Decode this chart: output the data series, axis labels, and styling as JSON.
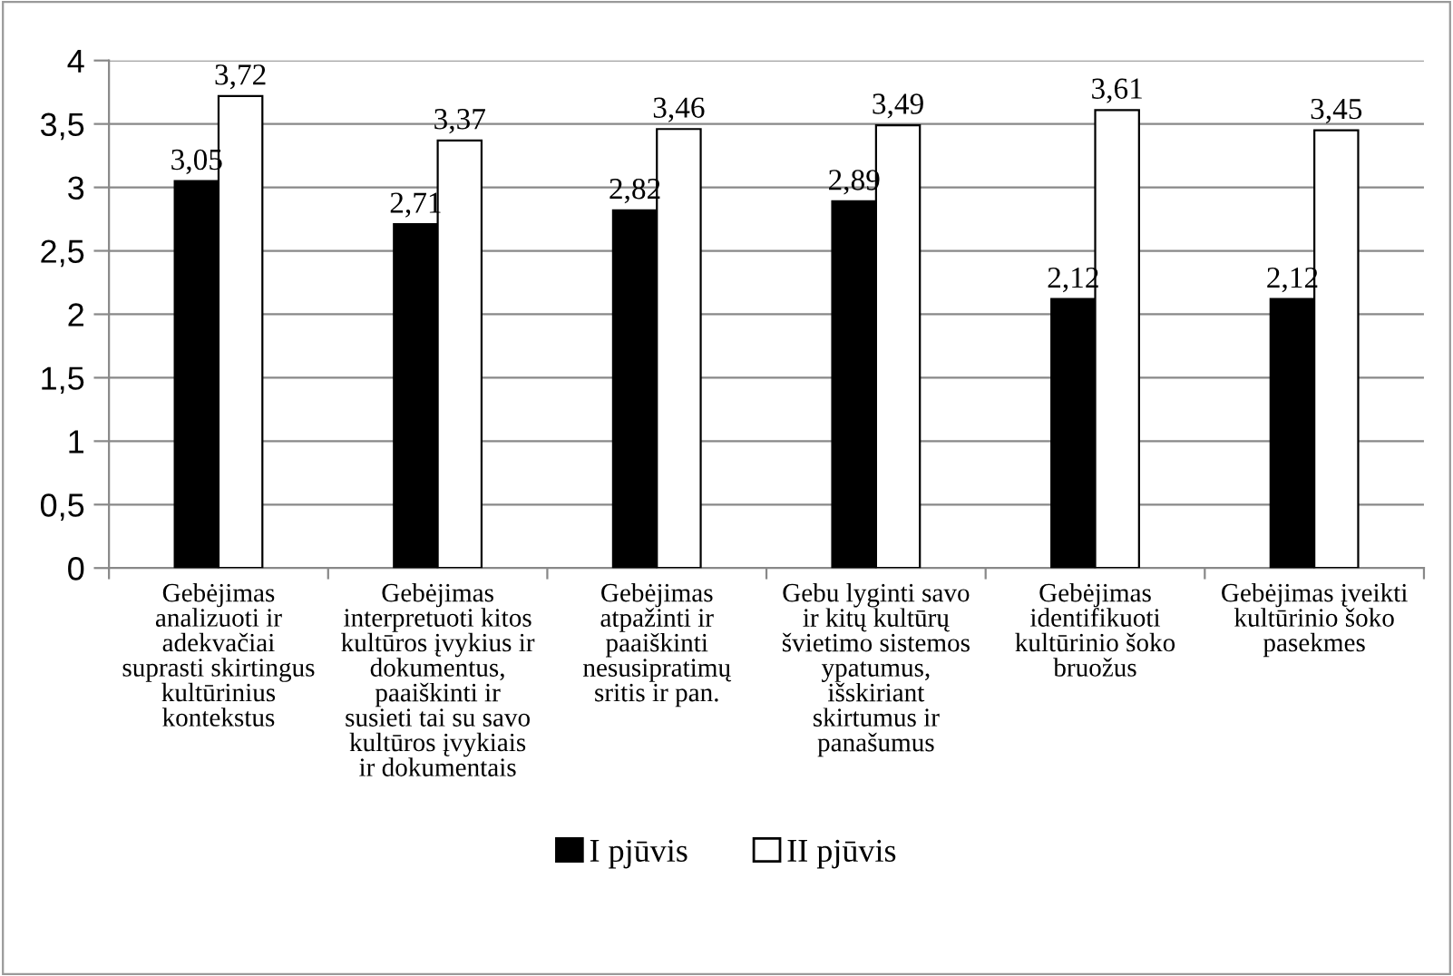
{
  "chart_data": {
    "type": "bar",
    "categories": [
      "Gebėjimas\nanalizuoti ir\nadekvačiai\nsuprasti skirtingus\nkultūrinius\nkontekstus",
      "Gebėjimas\ninterpretuoti kitos\nkultūros įvykius ir\ndokumentus,\npaaiškinti ir\nsusieti tai su savo\nkultūros įvykiais\nir dokumentais",
      "Gebėjimas\natpažinti ir\npaaiškinti\nnesusipratimų\nsritis ir pan.",
      "Gebu lyginti savo\nir kitų kultūrų\nšvietimo sistemos\nypatumus,\nišskiriant\nskirtumus ir\npanašumus",
      "Gebėjimas\nidentifikuoti\nkultūrinio šoko\nbruožus",
      "Gebėjimas įveikti\nkultūrinio šoko\npasekmes"
    ],
    "series": [
      {
        "name": "I pjūvis",
        "color": "#000000",
        "values": [
          3.05,
          2.71,
          2.82,
          2.89,
          2.12,
          2.12
        ],
        "value_labels": [
          "3,05",
          "2,71",
          "2,82",
          "2,89",
          "2,12",
          "2,12"
        ]
      },
      {
        "name": "II pjūvis",
        "color": "#ffffff",
        "values": [
          3.72,
          3.37,
          3.46,
          3.49,
          3.61,
          3.45
        ],
        "value_labels": [
          "3,72",
          "3,37",
          "3,46",
          "3,49",
          "3,61",
          "3,45"
        ]
      }
    ],
    "ylim": [
      0,
      4
    ],
    "yticks": [
      0,
      {
        "value": 0.5,
        "label": "0,5"
      },
      1,
      {
        "value": 1.5,
        "label": "1,5"
      },
      2,
      {
        "value": 2.5,
        "label": "2,5"
      },
      3,
      {
        "value": 3.5,
        "label": "3,5"
      },
      4
    ],
    "grid": "y",
    "legend": "bottom"
  }
}
